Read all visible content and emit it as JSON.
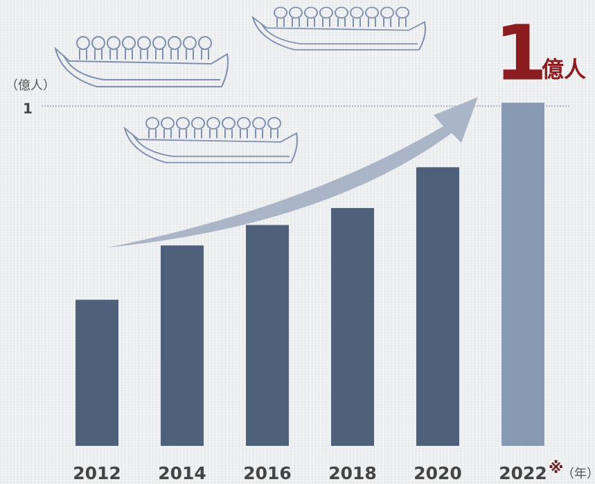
{
  "chart_data": {
    "type": "bar",
    "y_label": "（億人）",
    "x_label": "（年）",
    "note_mark": "※",
    "annotation": {
      "number": "1",
      "unit": "億人"
    },
    "categories": [
      "2012",
      "2014",
      "2016",
      "2018",
      "2020",
      "2022"
    ],
    "values": [
      0.43,
      0.59,
      0.65,
      0.7,
      0.82,
      1.01
    ],
    "colors": [
      "#4f607a",
      "#4f607a",
      "#4f607a",
      "#4f607a",
      "#4f607a",
      "#8799b3"
    ],
    "ylim": [
      0,
      1.3
    ],
    "yticks": [
      1
    ],
    "grid": true
  }
}
